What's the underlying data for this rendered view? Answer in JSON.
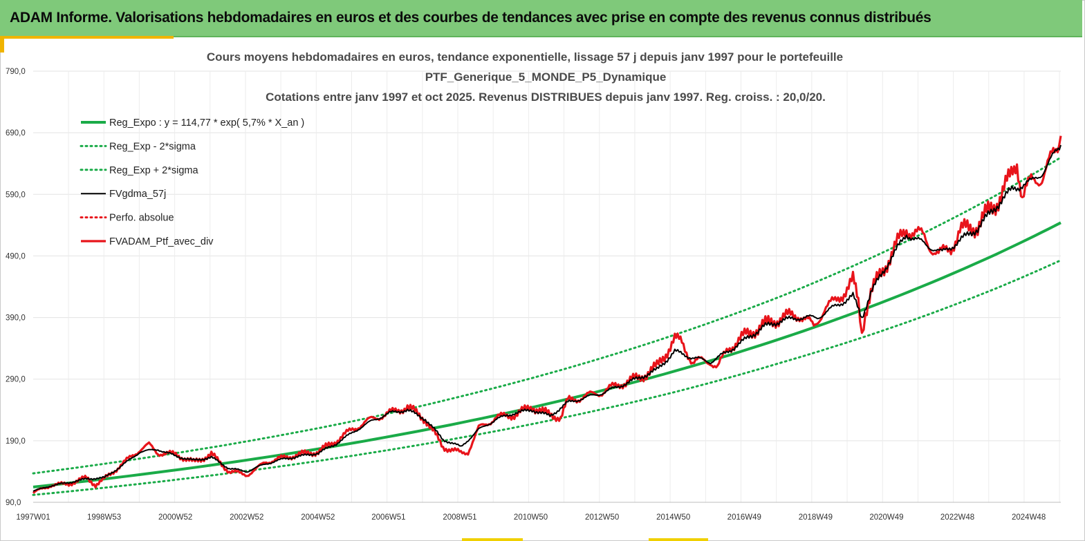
{
  "header": {
    "title": "ADAM Informe. Valorisations hebdomadaires en euros et des courbes de tendances avec prise en compte des revenus connus distribués"
  },
  "colors": {
    "header_bg": "#7fc97a",
    "accent": "#f0b400",
    "trend": "#1aab48",
    "price": "#e8141b",
    "smooth": "#000000"
  },
  "chart_data": {
    "type": "line",
    "title": [
      "Cours moyens hebdomadaires  en euros, tendance exponentielle, lissage 57 j depuis janv 1997 pour le portefeuille",
      "PTF_Generique_5_MONDE_P5_Dynamique",
      "Cotations entre janv 1997 et oct 2025. Revenus DISTRIBUES depuis janv 1997. Reg. croiss. : 20,0/20."
    ],
    "xlabel": "",
    "ylabel": "",
    "x_range": [
      1997.0,
      2025.83
    ],
    "ylim": [
      90,
      790
    ],
    "y_ticks": [
      90,
      190,
      290,
      390,
      490,
      590,
      690,
      790
    ],
    "y_tick_labels": [
      "90,0",
      "190,0",
      "290,0",
      "390,0",
      "490,0",
      "590,0",
      "690,0",
      "790,0"
    ],
    "x_ticks": [
      1997.0,
      1998.99,
      2000.99,
      2002.99,
      2004.99,
      2006.97,
      2008.97,
      2010.96,
      2012.96,
      2014.96,
      2016.95,
      2018.95,
      2020.94,
      2022.93,
      2024.93
    ],
    "x_tick_labels": [
      "1997W01",
      "1998W53",
      "2000W52",
      "2002W52",
      "2004W52",
      "2006W51",
      "2008W51",
      "2010W50",
      "2012W50",
      "2014W50",
      "2016W49",
      "2018W49",
      "2020W49",
      "2022W48",
      "2024W48"
    ],
    "grid": true,
    "legend_position": "top-left",
    "legend": [
      "Reg_Expo : y = 114,77 * exp( 5,7% *  X_an )",
      "Reg_Exp - 2*sigma",
      "Reg_Exp + 2*sigma",
      "FVgdma_57j",
      "Perfo. absolue",
      "FVADAM_Ptf_avec_div"
    ],
    "series": [
      {
        "name": "Reg_Expo : y = 114,77 * exp( 5,7% *  X_an )",
        "style": "solid",
        "color": "#1aab48",
        "formula": "114.77*exp(0.057*X_an)",
        "x": [
          1997.0,
          2000.0,
          2003.0,
          2006.0,
          2009.0,
          2012.0,
          2015.0,
          2018.0,
          2021.0,
          2024.0,
          2025.83
        ],
        "values": [
          114.8,
          135.0,
          158.6,
          186.5,
          219.2,
          257.7,
          303.0,
          356.2,
          418.8,
          492.3,
          544.0
        ]
      },
      {
        "name": "Reg_Exp - 2*sigma",
        "style": "dotted",
        "color": "#1aab48",
        "x": [
          1997.0,
          2000.0,
          2003.0,
          2006.0,
          2009.0,
          2012.0,
          2015.0,
          2018.0,
          2021.0,
          2024.0,
          2025.83
        ],
        "values": [
          102,
          120,
          141,
          166,
          195,
          229,
          269,
          317,
          372,
          437,
          483
        ]
      },
      {
        "name": "Reg_Exp + 2*sigma",
        "style": "dotted",
        "color": "#1aab48",
        "x": [
          1997.0,
          2000.0,
          2003.0,
          2006.0,
          2009.0,
          2012.0,
          2015.0,
          2018.0,
          2021.0,
          2024.0,
          2025.83
        ],
        "values": [
          137,
          161,
          189,
          222,
          262,
          308,
          362,
          425,
          500,
          588,
          650
        ]
      },
      {
        "name": "FVgdma_57j",
        "style": "solid",
        "color": "#000000",
        "x": [
          1997.0,
          1997.5,
          1998.0,
          1998.5,
          1999.0,
          1999.5,
          2000.0,
          2000.5,
          2001.0,
          2001.5,
          2002.0,
          2002.5,
          2003.0,
          2003.5,
          2004.0,
          2004.5,
          2005.0,
          2005.5,
          2006.0,
          2006.5,
          2007.0,
          2007.5,
          2008.0,
          2008.5,
          2009.0,
          2009.5,
          2010.0,
          2010.5,
          2011.0,
          2011.5,
          2012.0,
          2012.5,
          2013.0,
          2013.5,
          2014.0,
          2014.5,
          2015.0,
          2015.5,
          2016.0,
          2016.5,
          2017.0,
          2017.5,
          2018.0,
          2018.5,
          2019.0,
          2019.5,
          2020.0,
          2020.25,
          2020.5,
          2021.0,
          2021.5,
          2022.0,
          2022.5,
          2023.0,
          2023.5,
          2024.0,
          2024.5,
          2025.0,
          2025.3,
          2025.6,
          2025.83
        ],
        "values": [
          108,
          117,
          122,
          128,
          130,
          150,
          172,
          176,
          165,
          158,
          163,
          145,
          140,
          152,
          160,
          165,
          170,
          185,
          205,
          222,
          235,
          240,
          225,
          192,
          180,
          208,
          225,
          235,
          240,
          230,
          252,
          260,
          268,
          280,
          292,
          305,
          335,
          325,
          318,
          335,
          355,
          375,
          385,
          390,
          390,
          408,
          425,
          390,
          430,
          480,
          525,
          510,
          495,
          515,
          535,
          570,
          600,
          610,
          625,
          650,
          670
        ]
      },
      {
        "name": "Perfo. absolue",
        "style": "dotted",
        "color": "#e8141b",
        "x": [],
        "values": []
      },
      {
        "name": "FVADAM_Ptf_avec_div",
        "style": "solid",
        "color": "#e8141b",
        "x": [
          1997.0,
          1997.5,
          1998.0,
          1998.5,
          1998.75,
          1999.0,
          1999.5,
          2000.0,
          2000.25,
          2000.5,
          2001.0,
          2001.5,
          2002.0,
          2002.5,
          2003.0,
          2003.25,
          2003.5,
          2004.0,
          2004.5,
          2005.0,
          2005.5,
          2006.0,
          2006.5,
          2007.0,
          2007.5,
          2008.0,
          2008.5,
          2009.0,
          2009.2,
          2009.5,
          2010.0,
          2010.5,
          2011.0,
          2011.5,
          2011.8,
          2012.0,
          2012.5,
          2013.0,
          2013.5,
          2014.0,
          2014.5,
          2015.0,
          2015.2,
          2015.5,
          2016.0,
          2016.2,
          2016.5,
          2017.0,
          2017.5,
          2018.0,
          2018.5,
          2018.9,
          2019.2,
          2019.5,
          2020.0,
          2020.15,
          2020.25,
          2020.35,
          2020.5,
          2021.0,
          2021.5,
          2022.0,
          2022.4,
          2022.75,
          2023.0,
          2023.5,
          2024.0,
          2024.4,
          2024.6,
          2024.75,
          2025.0,
          2025.3,
          2025.5,
          2025.7,
          2025.83
        ],
        "values": [
          105,
          118,
          120,
          130,
          118,
          128,
          152,
          176,
          183,
          170,
          168,
          155,
          168,
          140,
          135,
          143,
          155,
          162,
          168,
          172,
          190,
          210,
          225,
          235,
          245,
          225,
          180,
          170,
          172,
          210,
          228,
          232,
          245,
          232,
          228,
          255,
          262,
          270,
          283,
          292,
          310,
          355,
          350,
          318,
          320,
          308,
          340,
          362,
          378,
          390,
          395,
          375,
          405,
          415,
          450,
          415,
          365,
          400,
          430,
          485,
          535,
          520,
          490,
          505,
          530,
          540,
          575,
          615,
          645,
          585,
          610,
          620,
          640,
          660,
          685
        ]
      }
    ]
  }
}
